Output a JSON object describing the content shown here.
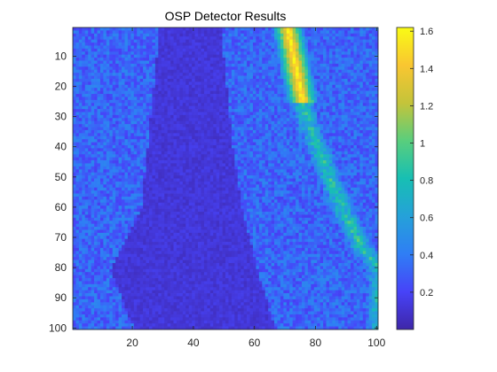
{
  "chart_data": {
    "type": "heatmap",
    "title": "OSP Detector Results",
    "xlabel": "",
    "ylabel": "",
    "xlim": [
      0.5,
      100.5
    ],
    "ylim": [
      0.5,
      100.5
    ],
    "y_reversed": true,
    "grid": false,
    "x_ticks": [
      20,
      40,
      60,
      80,
      100
    ],
    "y_ticks": [
      10,
      20,
      30,
      40,
      50,
      60,
      70,
      80,
      90,
      100
    ],
    "colormap": "parula",
    "colorbar": {
      "limits": [
        0.0,
        1.62
      ],
      "ticks": [
        0.2,
        0.4,
        0.6,
        0.8,
        1.0,
        1.2,
        1.4,
        1.6
      ],
      "tick_labels": [
        "0.2",
        "0.4",
        "0.6",
        "0.8",
        "1",
        "1.2",
        "1.4",
        "1.6"
      ]
    },
    "grid_size": [
      100,
      100
    ],
    "features": {
      "background_level": 0.32,
      "dark_channel": {
        "level": 0.07,
        "x_left_at_rows": [
          [
            0,
            28
          ],
          [
            60,
            22
          ],
          [
            80,
            12
          ],
          [
            100,
            20
          ]
        ],
        "x_right_at_rows": [
          [
            0,
            48
          ],
          [
            40,
            52
          ],
          [
            60,
            55
          ],
          [
            80,
            60
          ],
          [
            100,
            66
          ]
        ]
      },
      "bright_diagonal_band": {
        "peak_level": 1.6,
        "path": [
          [
            70,
            0
          ],
          [
            73,
            15
          ],
          [
            76,
            30
          ],
          [
            82,
            45
          ],
          [
            88,
            60
          ],
          [
            94,
            72
          ],
          [
            100,
            80
          ]
        ],
        "width": 3
      }
    }
  },
  "colors": {
    "colormap_stops": [
      "#3e26a8",
      "#4743f8",
      "#2f7ef5",
      "#25a1d9",
      "#17bfb3",
      "#59ce7d",
      "#c4c43a",
      "#f9c631",
      "#f9fb15"
    ],
    "axes_color": "#262626",
    "background": "#ffffff"
  }
}
